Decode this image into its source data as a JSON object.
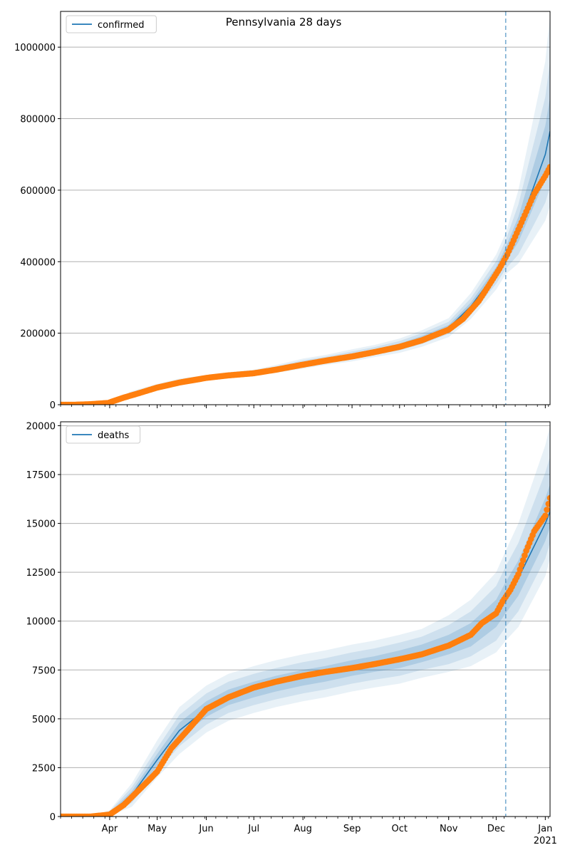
{
  "chart_data": [
    {
      "type": "line",
      "title": "Pennsylvania 28 days",
      "xlabel": "",
      "ylabel": "",
      "x_range": [
        "2020-03-01",
        "2021-01-04"
      ],
      "ylim": [
        0,
        1100000
      ],
      "yticks": [
        0,
        200000,
        400000,
        600000,
        800000,
        1000000
      ],
      "ytick_labels": [
        "0",
        "200000",
        "400000",
        "600000",
        "800000",
        "1000000"
      ],
      "grid": "horizontal",
      "legend": {
        "position": "top-left",
        "entries": [
          "confirmed"
        ]
      },
      "forecast_start": "2020-12-07",
      "colors": {
        "model": "#1f77b4",
        "observed": "#ff7f0e",
        "band": "#1f77b4",
        "vline": "#1f77b4"
      },
      "series": [
        {
          "name": "confirmed",
          "kind": "model",
          "x": [
            "2020-03-01",
            "2020-03-15",
            "2020-04-01",
            "2020-04-15",
            "2020-05-01",
            "2020-05-15",
            "2020-06-01",
            "2020-06-15",
            "2020-07-01",
            "2020-07-15",
            "2020-08-01",
            "2020-08-15",
            "2020-09-01",
            "2020-09-15",
            "2020-10-01",
            "2020-10-15",
            "2020-11-01",
            "2020-11-15",
            "2020-12-01",
            "2020-12-07",
            "2020-12-15",
            "2021-01-01",
            "2021-01-04"
          ],
          "values": [
            0,
            0,
            5000,
            30000,
            50000,
            65000,
            75000,
            83000,
            90000,
            100000,
            115000,
            125000,
            138000,
            150000,
            165000,
            185000,
            215000,
            275000,
            370000,
            420000,
            490000,
            700000,
            765000
          ],
          "bands": [
            {
              "level": 1,
              "lower": [
                0,
                0,
                4000,
                28000,
                48000,
                63000,
                73000,
                81000,
                88000,
                97000,
                111000,
                121000,
                133000,
                145000,
                159000,
                178000,
                207000,
                264000,
                355000,
                400000,
                455000,
                630000,
                680000
              ],
              "upper": [
                0,
                0,
                6000,
                32000,
                52000,
                67000,
                77000,
                85000,
                92000,
                103000,
                119000,
                129000,
                143000,
                155000,
                171000,
                192000,
                223000,
                286000,
                385000,
                440000,
                525000,
                780000,
                860000
              ]
            },
            {
              "level": 2,
              "lower": [
                0,
                0,
                3000,
                25000,
                45000,
                60000,
                70000,
                78000,
                85000,
                93000,
                106000,
                116000,
                127000,
                139000,
                152000,
                170000,
                198000,
                252000,
                338000,
                380000,
                420000,
                565000,
                610000
              ],
              "upper": [
                0,
                0,
                7000,
                35000,
                55000,
                70000,
                80000,
                88000,
                95000,
                107000,
                124000,
                134000,
                149000,
                161000,
                178000,
                200000,
                232000,
                298000,
                402000,
                460000,
                560000,
                860000,
                960000
              ]
            },
            {
              "level": 3,
              "lower": [
                0,
                0,
                2000,
                22000,
                42000,
                57000,
                67000,
                75000,
                82000,
                89000,
                101000,
                111000,
                121000,
                133000,
                145000,
                162000,
                189000,
                240000,
                322000,
                365000,
                395000,
                515000,
                555000
              ],
              "upper": [
                0,
                0,
                8000,
                38000,
                58000,
                73000,
                83000,
                91000,
                98000,
                111000,
                129000,
                139000,
                155000,
                167000,
                185000,
                208000,
                242000,
                312000,
                420000,
                480000,
                600000,
                960000,
                1090000
              ]
            }
          ]
        },
        {
          "name": "",
          "kind": "observed",
          "x": [
            "2020-03-01",
            "2020-03-10",
            "2020-03-20",
            "2020-03-31",
            "2020-04-10",
            "2020-04-20",
            "2020-05-01",
            "2020-05-15",
            "2020-06-01",
            "2020-06-15",
            "2020-07-01",
            "2020-07-15",
            "2020-08-01",
            "2020-08-15",
            "2020-09-01",
            "2020-09-15",
            "2020-10-01",
            "2020-10-15",
            "2020-11-01",
            "2020-11-10",
            "2020-11-20",
            "2020-11-28",
            "2020-12-03",
            "2020-12-08",
            "2020-12-15",
            "2020-12-20",
            "2020-12-25",
            "2021-01-01",
            "2021-01-04"
          ],
          "values": [
            0,
            0,
            1500,
            5000,
            20000,
            33000,
            48000,
            62000,
            75000,
            82000,
            88000,
            98000,
            112000,
            123000,
            135000,
            147000,
            162000,
            180000,
            210000,
            240000,
            290000,
            345000,
            380000,
            420000,
            490000,
            540000,
            590000,
            640000,
            665000
          ]
        }
      ]
    },
    {
      "type": "line",
      "title": "",
      "xlabel": "",
      "ylabel": "",
      "x_range": [
        "2020-03-01",
        "2021-01-04"
      ],
      "ylim": [
        0,
        20200
      ],
      "yticks": [
        0,
        2500,
        5000,
        7500,
        10000,
        12500,
        15000,
        17500,
        20000
      ],
      "ytick_labels": [
        "0",
        "2500",
        "5000",
        "7500",
        "10000",
        "12500",
        "15000",
        "17500",
        "20000"
      ],
      "xtick_labels": [
        {
          "date": "2020-04-01",
          "label": "Apr"
        },
        {
          "date": "2020-05-01",
          "label": "May"
        },
        {
          "date": "2020-06-01",
          "label": "Jun"
        },
        {
          "date": "2020-07-01",
          "label": "Jul"
        },
        {
          "date": "2020-08-01",
          "label": "Aug"
        },
        {
          "date": "2020-09-01",
          "label": "Sep"
        },
        {
          "date": "2020-10-01",
          "label": "Oct"
        },
        {
          "date": "2020-11-01",
          "label": "Nov"
        },
        {
          "date": "2020-12-01",
          "label": "Dec"
        },
        {
          "date": "2021-01-01",
          "label": "Jan"
        }
      ],
      "year_label": "2021",
      "grid": "horizontal",
      "legend": {
        "position": "top-left",
        "entries": [
          "deaths"
        ]
      },
      "forecast_start": "2020-12-07",
      "colors": {
        "model": "#1f77b4",
        "observed": "#ff7f0e",
        "band": "#1f77b4",
        "vline": "#1f77b4"
      },
      "series": [
        {
          "name": "deaths",
          "kind": "model",
          "x": [
            "2020-03-01",
            "2020-03-20",
            "2020-04-01",
            "2020-04-15",
            "2020-05-01",
            "2020-05-15",
            "2020-06-01",
            "2020-06-15",
            "2020-07-01",
            "2020-07-15",
            "2020-08-01",
            "2020-08-15",
            "2020-09-01",
            "2020-09-15",
            "2020-10-01",
            "2020-10-15",
            "2020-11-01",
            "2020-11-15",
            "2020-12-01",
            "2020-12-07",
            "2020-12-15",
            "2021-01-01",
            "2021-01-04"
          ],
          "values": [
            0,
            0,
            150,
            1100,
            2900,
            4400,
            5500,
            6100,
            6500,
            6800,
            7100,
            7300,
            7600,
            7800,
            8050,
            8350,
            8800,
            9300,
            10400,
            11200,
            12200,
            15000,
            15600
          ],
          "bands": [
            {
              "level": 1,
              "lower": [
                0,
                0,
                100,
                900,
                2600,
                4000,
                5100,
                5700,
                6100,
                6400,
                6700,
                6900,
                7200,
                7400,
                7600,
                7900,
                8300,
                8700,
                9700,
                10400,
                11300,
                14100,
                14800
              ],
              "upper": [
                0,
                0,
                200,
                1300,
                3200,
                4800,
                5900,
                6500,
                6900,
                7200,
                7500,
                7700,
                8000,
                8200,
                8500,
                8800,
                9300,
                9900,
                11100,
                12000,
                13100,
                16300,
                17000
              ]
            },
            {
              "level": 2,
              "lower": [
                0,
                0,
                60,
                700,
                2300,
                3600,
                4700,
                5300,
                5700,
                6000,
                6300,
                6500,
                6800,
                7000,
                7200,
                7500,
                7800,
                8200,
                9000,
                9700,
                10500,
                13200,
                14000
              ],
              "upper": [
                0,
                0,
                260,
                1500,
                3500,
                5200,
                6300,
                6900,
                7300,
                7600,
                7900,
                8100,
                8400,
                8600,
                8900,
                9200,
                9800,
                10500,
                11800,
                12800,
                14000,
                17600,
                18400
              ]
            },
            {
              "level": 3,
              "lower": [
                0,
                0,
                30,
                500,
                2000,
                3200,
                4300,
                4900,
                5300,
                5600,
                5900,
                6100,
                6400,
                6600,
                6800,
                7100,
                7400,
                7700,
                8400,
                9000,
                9700,
                12300,
                13200
              ],
              "upper": [
                0,
                0,
                320,
                1700,
                3900,
                5600,
                6700,
                7300,
                7700,
                8000,
                8300,
                8500,
                8800,
                9000,
                9300,
                9600,
                10300,
                11100,
                12500,
                13600,
                15000,
                19000,
                20000
              ]
            }
          ]
        },
        {
          "name": "",
          "kind": "observed",
          "x": [
            "2020-03-01",
            "2020-03-20",
            "2020-04-01",
            "2020-04-10",
            "2020-04-20",
            "2020-04-25",
            "2020-05-01",
            "2020-05-10",
            "2020-05-20",
            "2020-06-01",
            "2020-06-15",
            "2020-07-01",
            "2020-07-15",
            "2020-08-01",
            "2020-08-15",
            "2020-09-01",
            "2020-09-15",
            "2020-10-01",
            "2020-10-15",
            "2020-11-01",
            "2020-11-15",
            "2020-11-22",
            "2020-12-01",
            "2020-12-05",
            "2020-12-10",
            "2020-12-15",
            "2020-12-20",
            "2020-12-25",
            "2021-01-01",
            "2021-01-04"
          ],
          "values": [
            0,
            0,
            100,
            600,
            1400,
            1800,
            2300,
            3500,
            4400,
            5500,
            6100,
            6600,
            6900,
            7200,
            7400,
            7600,
            7800,
            8050,
            8300,
            8750,
            9300,
            9900,
            10400,
            11000,
            11600,
            12400,
            13600,
            14600,
            15400,
            16300
          ]
        }
      ]
    }
  ]
}
